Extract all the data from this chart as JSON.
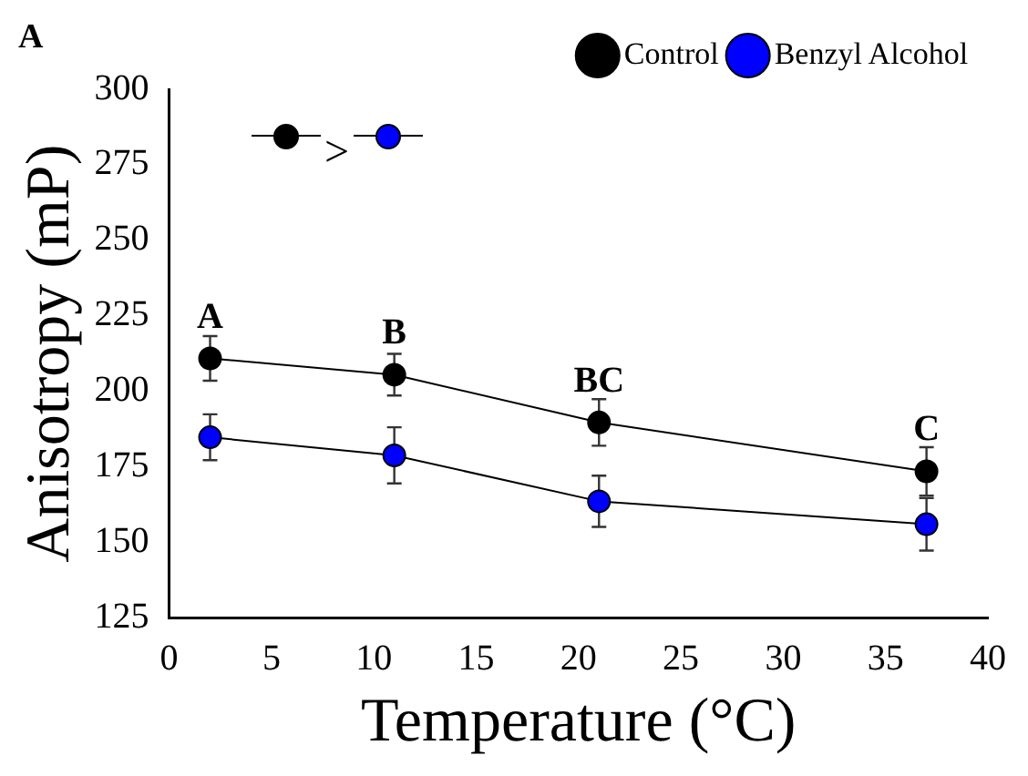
{
  "chart_data": {
    "type": "line",
    "xlabel": "Temperature (°C)",
    "ylabel": "Anisotropy (mP)",
    "x": [
      2,
      11,
      21,
      37
    ],
    "series": [
      {
        "name": "Control",
        "color": "#000000",
        "values": [
          210.9,
          205.5,
          189.7,
          173.5
        ],
        "errors": [
          7.4,
          6.9,
          7.7,
          8
        ]
      },
      {
        "name": "Benzyl Alcohol",
        "color": "#0000ff",
        "values": [
          184.8,
          178.8,
          163.6,
          156
        ],
        "errors": [
          7.6,
          9.3,
          8.5,
          8.7
        ]
      }
    ],
    "xlim": [
      0,
      40
    ],
    "xticks": [
      0,
      5,
      10,
      15,
      20,
      25,
      30,
      35,
      40
    ],
    "ylim": [
      125,
      300
    ],
    "yticks": [
      125,
      150,
      175,
      200,
      225,
      250,
      275,
      300
    ],
    "marker": "circle",
    "line_style": "solid",
    "grid": false,
    "legend": "top right",
    "annotations": [
      "A",
      ">",
      {
        "text": "A",
        "x": 2,
        "y": 218
      },
      {
        "text": "B",
        "x": 11,
        "y": 213
      },
      {
        "text": "BC",
        "x": 21,
        "y": 197
      },
      {
        "text": "C",
        "x": 37,
        "y": 181
      }
    ]
  }
}
